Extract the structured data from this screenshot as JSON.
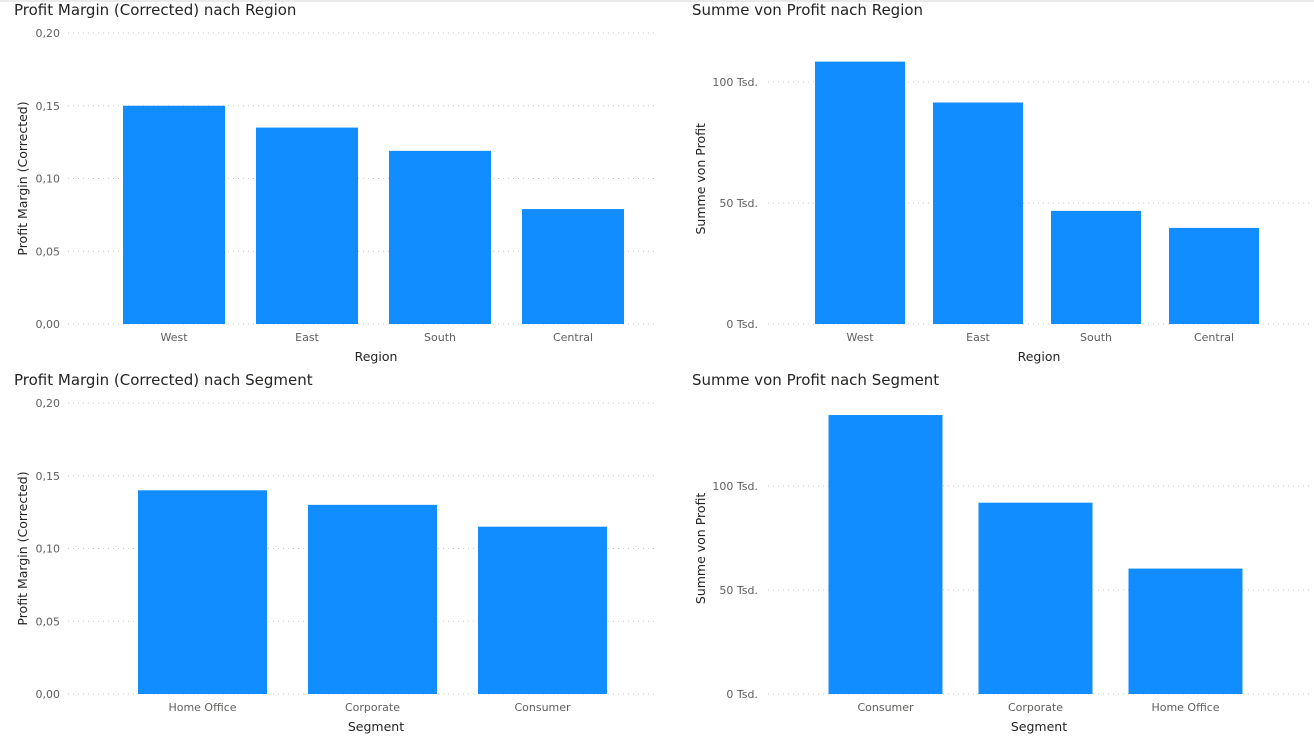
{
  "bar_color": "#118DFF",
  "chart_data": [
    {
      "type": "bar",
      "title": "Profit Margin (Corrected) nach Region",
      "xlabel": "Region",
      "ylabel": "Profit Margin (Corrected)",
      "categories": [
        "West",
        "East",
        "South",
        "Central"
      ],
      "values": [
        0.15,
        0.135,
        0.119,
        0.079
      ],
      "ylim": [
        0,
        0.2
      ],
      "yticks": [
        0,
        0.05,
        0.1,
        0.15,
        0.2
      ],
      "ytick_labels": [
        "0,00",
        "0,05",
        "0,10",
        "0,15",
        "0,20"
      ],
      "grid": true
    },
    {
      "type": "bar",
      "title": "Summe von Profit nach Region",
      "xlabel": "Region",
      "ylabel": "Summe von Profit",
      "categories": [
        "West",
        "East",
        "South",
        "Central"
      ],
      "values": [
        108418,
        91523,
        46749,
        39706
      ],
      "ylim": [
        0,
        120000
      ],
      "yticks": [
        0,
        50000,
        100000
      ],
      "ytick_labels": [
        "0 Tsd.",
        "50 Tsd.",
        "100 Tsd."
      ],
      "grid": true
    },
    {
      "type": "bar",
      "title": "Profit Margin (Corrected) nach Segment",
      "xlabel": "Segment",
      "ylabel": "Profit Margin (Corrected)",
      "categories": [
        "Home Office",
        "Corporate",
        "Consumer"
      ],
      "values": [
        0.14,
        0.13,
        0.115
      ],
      "ylim": [
        0,
        0.2
      ],
      "yticks": [
        0,
        0.05,
        0.1,
        0.15,
        0.2
      ],
      "ytick_labels": [
        "0,00",
        "0,05",
        "0,10",
        "0,15",
        "0,20"
      ],
      "grid": true
    },
    {
      "type": "bar",
      "title": "Summe von Profit nach Segment",
      "xlabel": "Segment",
      "ylabel": "Summe von Profit",
      "categories": [
        "Consumer",
        "Corporate",
        "Home Office"
      ],
      "values": [
        134119,
        91979,
        60299
      ],
      "ylim": [
        0,
        140000
      ],
      "yticks": [
        0,
        50000,
        100000
      ],
      "ytick_labels": [
        "0 Tsd.",
        "50 Tsd.",
        "100 Tsd."
      ],
      "grid": true
    }
  ]
}
